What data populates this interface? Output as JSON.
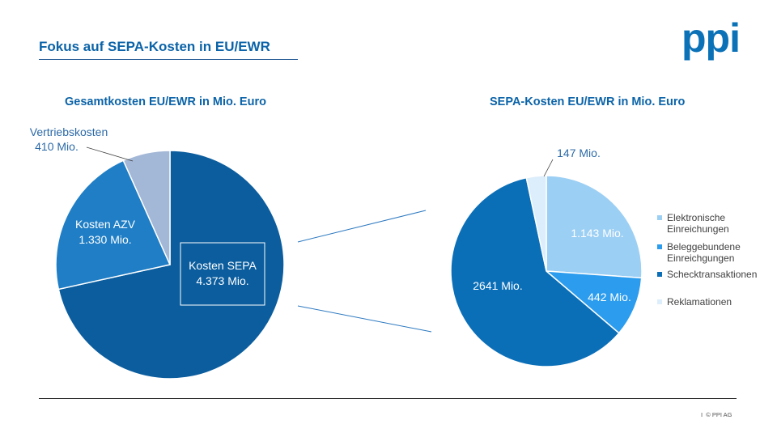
{
  "header": {
    "title": "Fokus auf SEPA-Kosten in EU/EWR",
    "logo_text": "ppi"
  },
  "footer": {
    "separator": "I",
    "copyright": "© PPI AG"
  },
  "colors": {
    "accent": "#0b63a8",
    "sepa": "#0b5d9e",
    "azv": "#1f7ec5",
    "vertrieb": "#a3b7d6",
    "elektronisch": "#9ccff4",
    "beleg": "#2b9cee",
    "scheck": "#0b6fb8",
    "reklamation": "#dcedfb"
  },
  "chart_data": [
    {
      "type": "pie",
      "title": "Gesamtkosten EU/EWR in Mio. Euro",
      "unit": "Mio. Euro",
      "slices": [
        {
          "key": "sepa",
          "label": "Kosten SEPA",
          "value": 4373,
          "value_label": "4.373 Mio.",
          "color": "#0b5d9e",
          "label_color": "#ffffff"
        },
        {
          "key": "azv",
          "label": "Kosten AZV",
          "value": 1330,
          "value_label": "1.330 Mio.",
          "color": "#1f7ec5",
          "label_color": "#ffffff"
        },
        {
          "key": "vertrieb",
          "label": "Vertriebskosten",
          "value": 410,
          "value_label": "410 Mio.",
          "color": "#a3b7d6",
          "label_color": "#2c6aa8"
        }
      ]
    },
    {
      "type": "pie",
      "title": "SEPA-Kosten EU/EWR in Mio. Euro",
      "unit": "Mio. Euro",
      "slices": [
        {
          "key": "elektronisch",
          "legend": "Elektronische Einreichungen",
          "value": 1143,
          "value_label": "1.143 Mio.",
          "color": "#9ccff4",
          "label_color": "#ffffff"
        },
        {
          "key": "beleg",
          "legend": "Beleggebundene Einreichgungen",
          "value": 442,
          "value_label": "442 Mio.",
          "color": "#2b9cee",
          "label_color": "#ffffff"
        },
        {
          "key": "scheck",
          "legend": "Schecktransaktionen",
          "value": 2641,
          "value_label": "2641 Mio.",
          "color": "#0b6fb8",
          "label_color": "#ffffff"
        },
        {
          "key": "reklamation",
          "legend": "Reklamationen",
          "value": 147,
          "value_label": "147 Mio.",
          "color": "#dcedfb",
          "label_color": "#2c6aa8"
        }
      ]
    }
  ]
}
